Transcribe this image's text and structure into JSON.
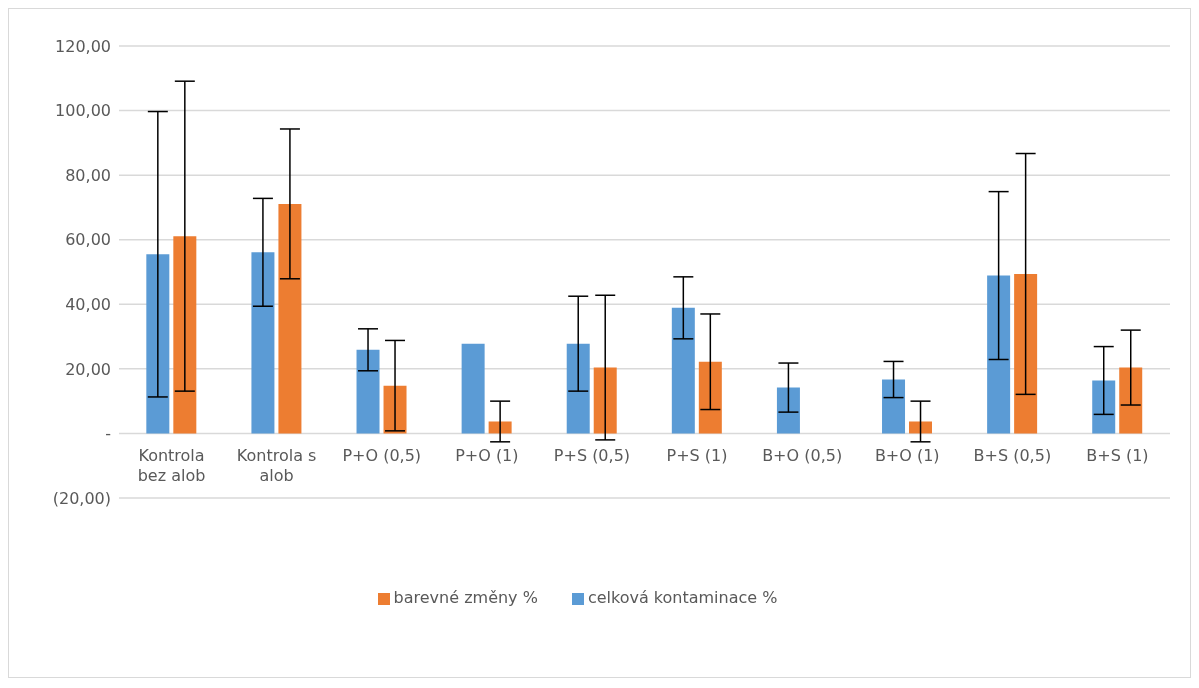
{
  "chart_data": {
    "type": "bar",
    "categories": [
      "Kontrola bez alob",
      "Kontrola s alob",
      "P+O (0,5)",
      "P+O (1)",
      "P+S (0,5)",
      "P+S (1)",
      "B+O (0,5)",
      "B+O (1)",
      "B+S (0,5)",
      "B+S (1)"
    ],
    "series": [
      {
        "name": "celková kontaminace %",
        "color": "#5b9bd5",
        "values": [
          55.5,
          56.1,
          25.9,
          27.8,
          27.8,
          38.9,
          14.2,
          16.7,
          48.9,
          16.4
        ],
        "errors": [
          44.2,
          16.7,
          6.5,
          0,
          14.7,
          9.6,
          7.6,
          5.6,
          26,
          10.5
        ]
      },
      {
        "name": "barevné změny %",
        "color": "#ed7d31",
        "values": [
          61.1,
          71.1,
          14.8,
          3.7,
          20.4,
          22.2,
          null,
          3.7,
          49.4,
          20.4
        ],
        "errors": [
          48,
          23.2,
          14,
          6.3,
          22.4,
          14.8,
          null,
          6.3,
          37.3,
          11.6
        ]
      }
    ],
    "ylim": [
      -20,
      120
    ],
    "yticks": [
      {
        "value": -20,
        "label": "(20,00)"
      },
      {
        "value": 0,
        "label": "-"
      },
      {
        "value": 20,
        "label": "20,00"
      },
      {
        "value": 40,
        "label": "40,00"
      },
      {
        "value": 60,
        "label": "60,00"
      },
      {
        "value": 80,
        "label": "80,00"
      },
      {
        "value": 100,
        "label": "100,00"
      },
      {
        "value": 120,
        "label": "120,00"
      }
    ],
    "grid": "y",
    "legend": "bottom"
  }
}
